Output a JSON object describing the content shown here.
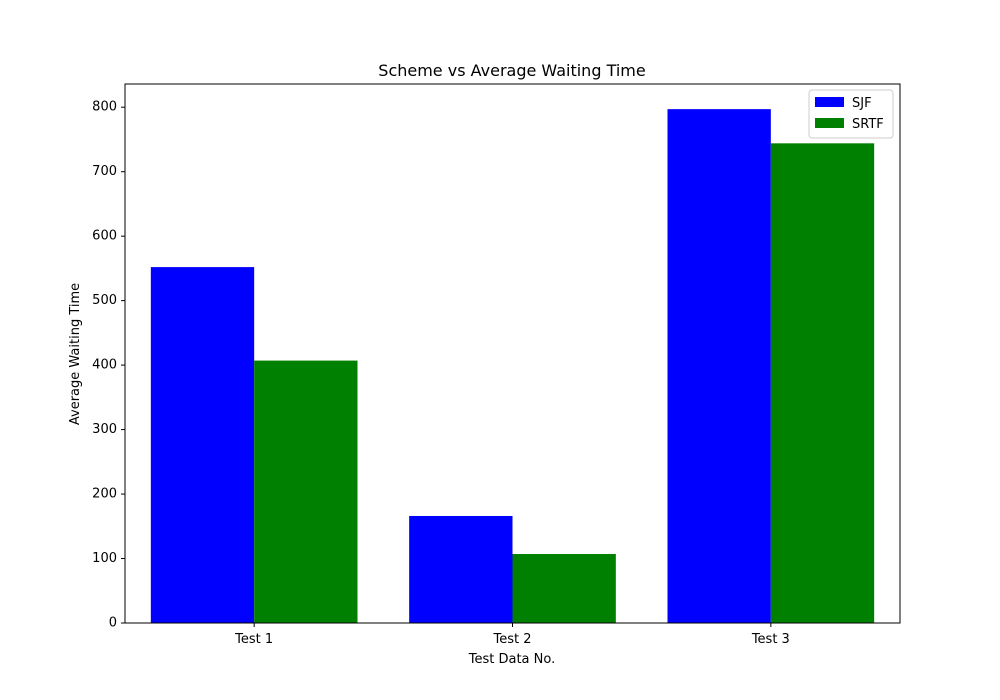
{
  "chart_data": {
    "type": "bar",
    "title": "Scheme vs Average Waiting Time",
    "xlabel": "Test Data No.",
    "ylabel": "Average Waiting Time",
    "categories": [
      "Test 1",
      "Test 2",
      "Test 3"
    ],
    "series": [
      {
        "name": "SJF",
        "color": "#0000ff",
        "values": [
          552,
          166,
          797
        ]
      },
      {
        "name": "SRTF",
        "color": "#008000",
        "values": [
          407,
          107,
          744
        ]
      }
    ],
    "ylim": [
      0,
      836
    ],
    "yticks": [
      0,
      100,
      200,
      300,
      400,
      500,
      600,
      700,
      800
    ],
    "grid": false,
    "legend": "top-right"
  }
}
